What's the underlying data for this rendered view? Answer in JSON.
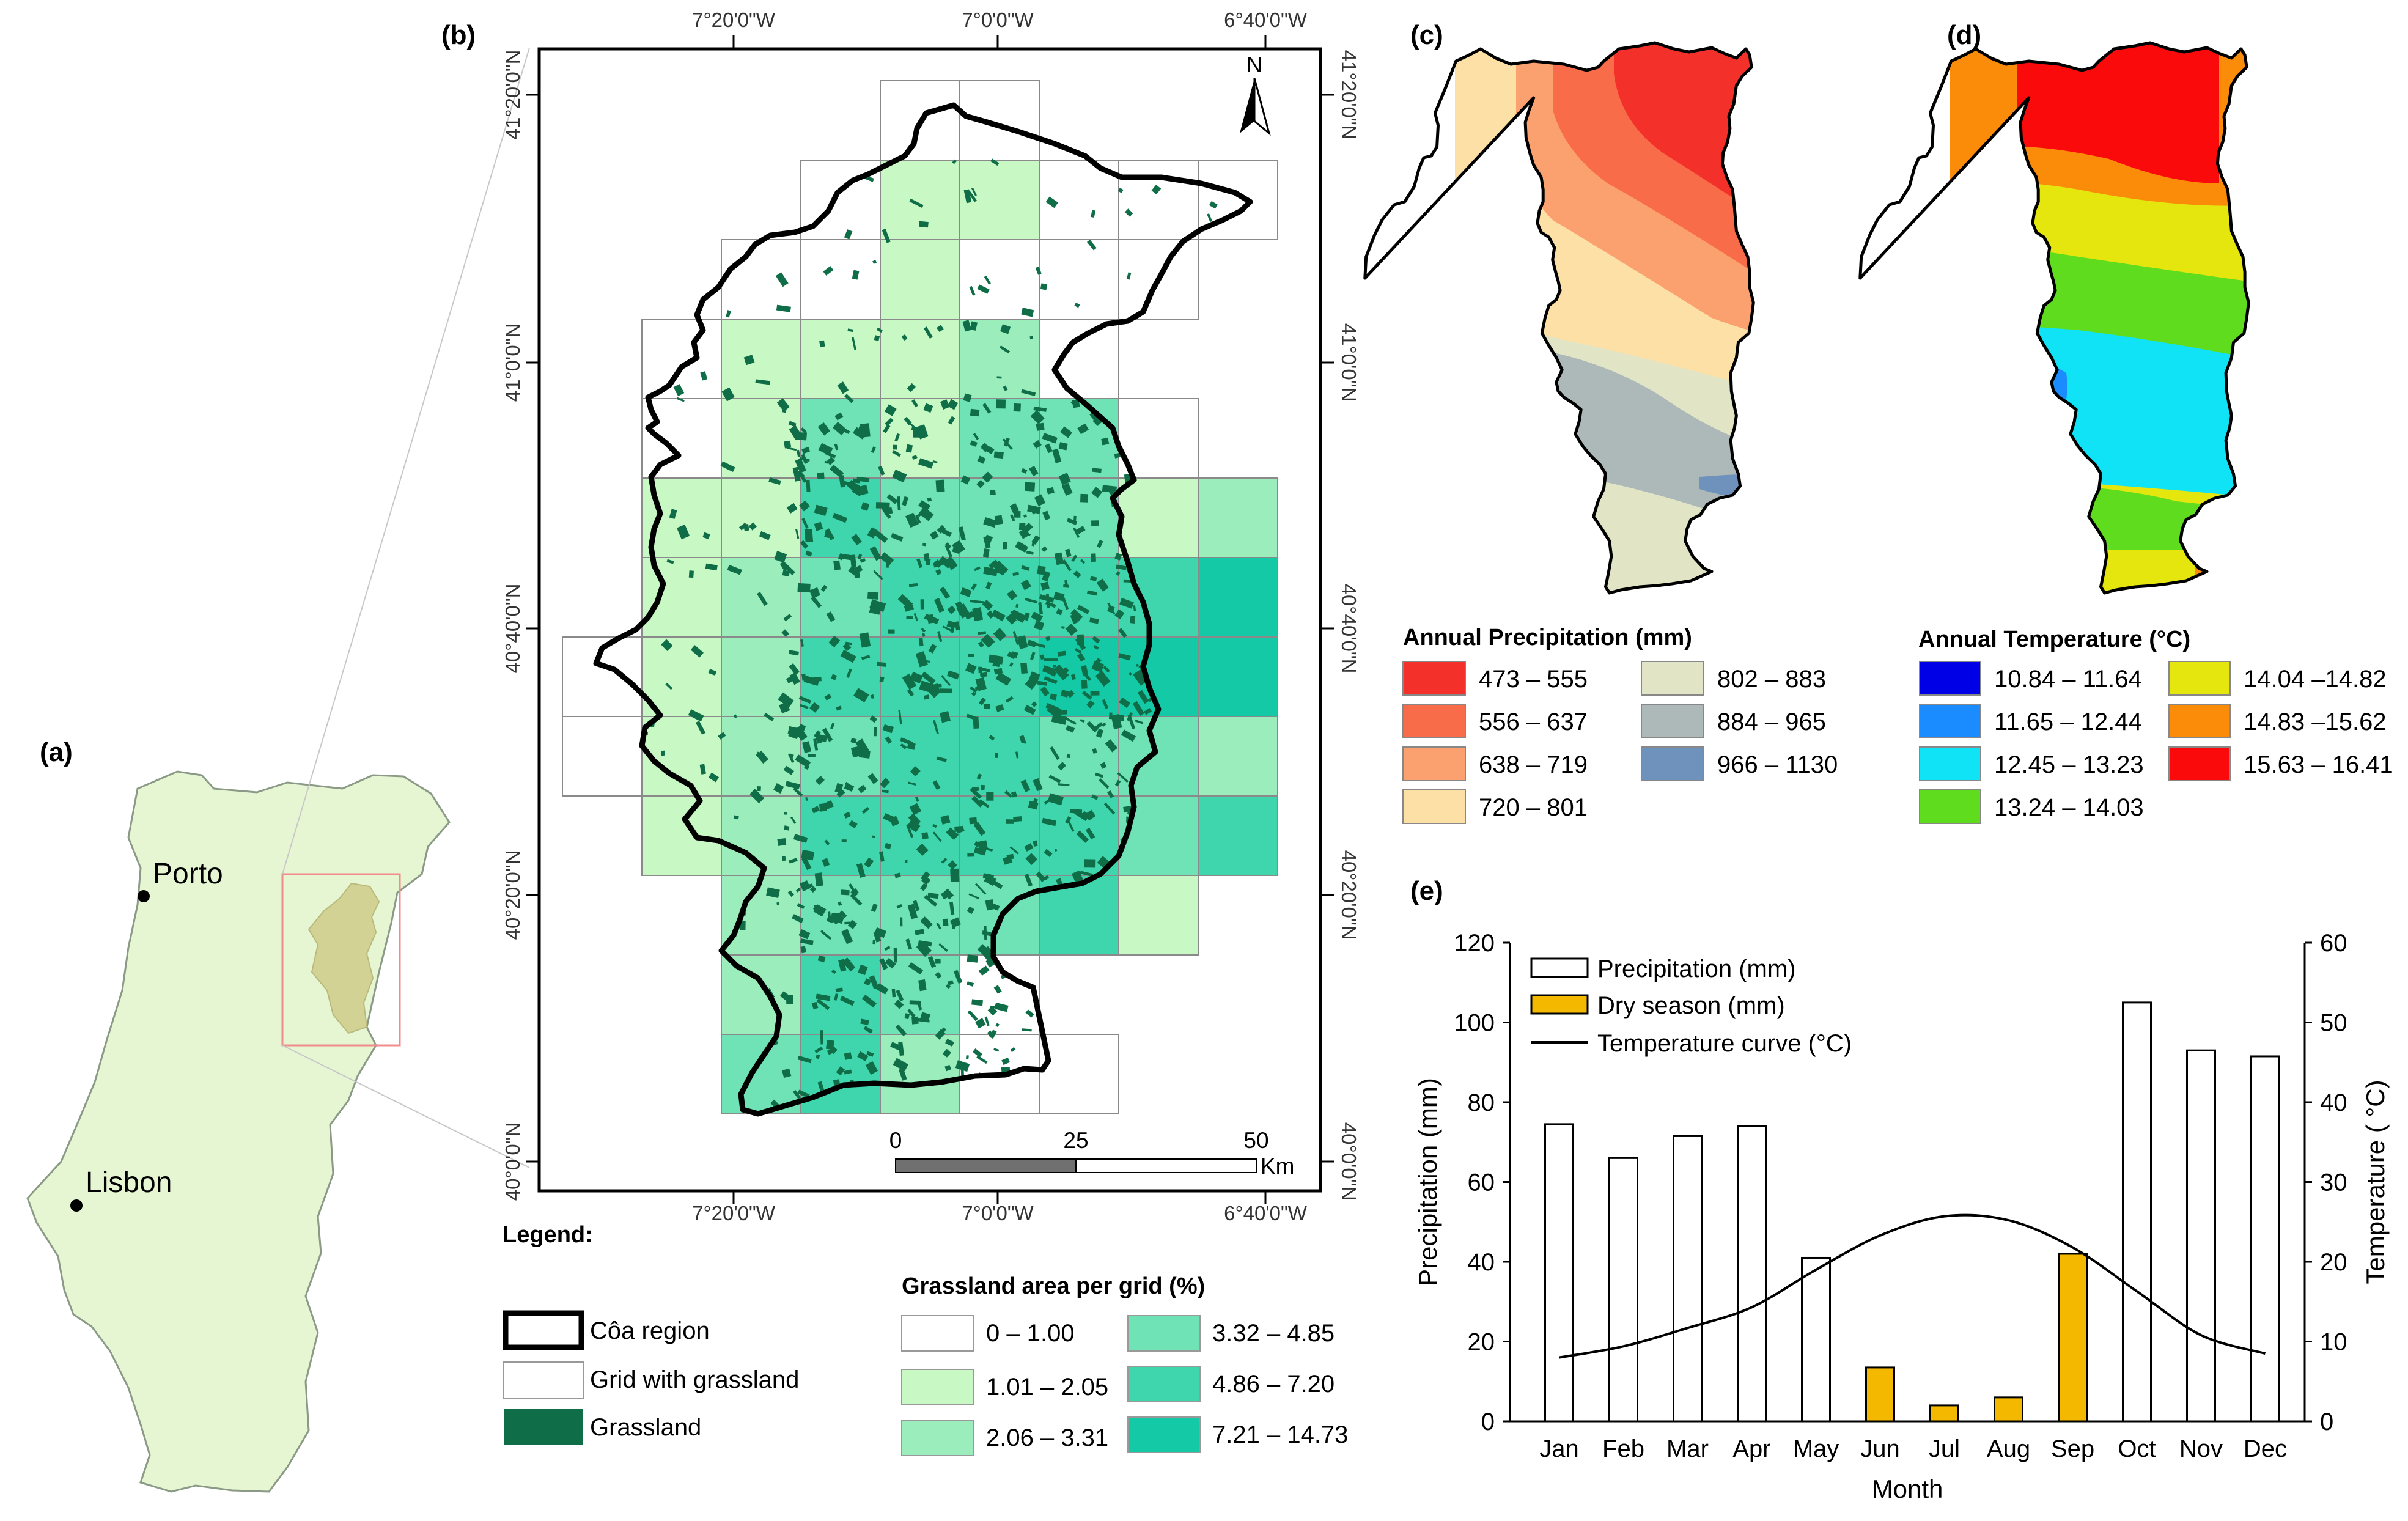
{
  "panels": {
    "a": "(a)",
    "b": "(b)",
    "c": "(c)",
    "d": "(d)",
    "e": "(e)"
  },
  "map_a": {
    "cities": [
      "Porto",
      "Lisbon"
    ]
  },
  "map_b": {
    "lon_labels": [
      "7°20'0\"W",
      "7°0'0\"W",
      "6°40'0\"W"
    ],
    "lat_labels": [
      "41°20'0\"N",
      "41°0'0\"N",
      "40°40'0\"N",
      "40°20'0\"N",
      "40°0'0\"N"
    ],
    "north": "N",
    "scalebar": {
      "ticks": [
        "0",
        "25",
        "50"
      ],
      "unit": "Km"
    },
    "legend_title": "Legend:",
    "legend_items": [
      "Côa region",
      "Grid with grassland",
      "Grassland"
    ],
    "grass_title": "Grassland area per grid (%)",
    "grass_classes": [
      {
        "label": "0 – 1.00",
        "color": "#ffffff"
      },
      {
        "label": "1.01 – 2.05",
        "color": "#c8f9c4"
      },
      {
        "label": "2.06 – 3.31",
        "color": "#9beebb"
      },
      {
        "label": "3.32 – 4.85",
        "color": "#6fe2b6"
      },
      {
        "label": "4.86 – 7.20",
        "color": "#3fd6ae"
      },
      {
        "label": "7.21 – 14.73",
        "color": "#13c9a6"
      }
    ],
    "colors": {
      "grassland": "#0f6e47",
      "region_fill": "#d2d295",
      "portugal": "#e6f5d2"
    }
  },
  "map_c": {
    "title": "Annual Precipitation (mm)",
    "classes": [
      {
        "label": "473 – 555",
        "color": "#f4302a"
      },
      {
        "label": "556 – 637",
        "color": "#f86c4a"
      },
      {
        "label": "638 – 719",
        "color": "#fba170"
      },
      {
        "label": "720 – 801",
        "color": "#fde0a6"
      },
      {
        "label": "802 – 883",
        "color": "#e2e5c5"
      },
      {
        "label": "884 – 965",
        "color": "#acb9b8"
      },
      {
        "label": "966 – 1130",
        "color": "#6f92bc"
      }
    ]
  },
  "map_d": {
    "title": "Annual Temperature (°C)",
    "classes": [
      {
        "label": "10.84 – 11.64",
        "color": "#0000e6"
      },
      {
        "label": "11.65 – 12.44",
        "color": "#1a8cff"
      },
      {
        "label": "12.45 – 13.23",
        "color": "#11e3f7"
      },
      {
        "label": "13.24 – 14.03",
        "color": "#5fdc1e"
      },
      {
        "label": "14.04 –14.82",
        "color": "#e4e60d"
      },
      {
        "label": "14.83 –15.62",
        "color": "#fa8c0a"
      },
      {
        "label": "15.63 – 16.41",
        "color": "#fa0a0a"
      }
    ]
  },
  "chart_data": {
    "type": "bar",
    "categories": [
      "Jan",
      "Feb",
      "Mar",
      "Apr",
      "May",
      "Jun",
      "Jul",
      "Aug",
      "Sep",
      "Oct",
      "Nov",
      "Dec"
    ],
    "series": [
      {
        "name": "Precipitation (mm)",
        "type": "bar",
        "axis": "left",
        "color": "#ffffff",
        "values": [
          74.5,
          66,
          71.5,
          74,
          41,
          null,
          null,
          null,
          null,
          105,
          93,
          91.5
        ]
      },
      {
        "name": "Dry season (mm)",
        "type": "bar",
        "axis": "left",
        "color": "#f5b800",
        "values": [
          null,
          null,
          null,
          null,
          null,
          13.5,
          4,
          6,
          42,
          null,
          null,
          null
        ]
      },
      {
        "name": "Temperature curve (°C)",
        "type": "line",
        "axis": "right",
        "color": "#000000",
        "values": [
          8,
          9.4,
          11.7,
          14.3,
          19,
          23.3,
          25.7,
          25.2,
          21.8,
          16.3,
          10.8,
          8.5
        ]
      }
    ],
    "xlabel": "Month",
    "ylabel": "Precipitation (mm)",
    "y2label": "Temperature ( °C)",
    "ylim": [
      0,
      120
    ],
    "y2lim": [
      0,
      60
    ],
    "yticks": [
      "0",
      "20",
      "40",
      "60",
      "80",
      "100",
      "120"
    ],
    "y2ticks": [
      "0",
      "10",
      "20",
      "30",
      "40",
      "50",
      "60"
    ],
    "legend_position": "top-left",
    "grid": false
  }
}
